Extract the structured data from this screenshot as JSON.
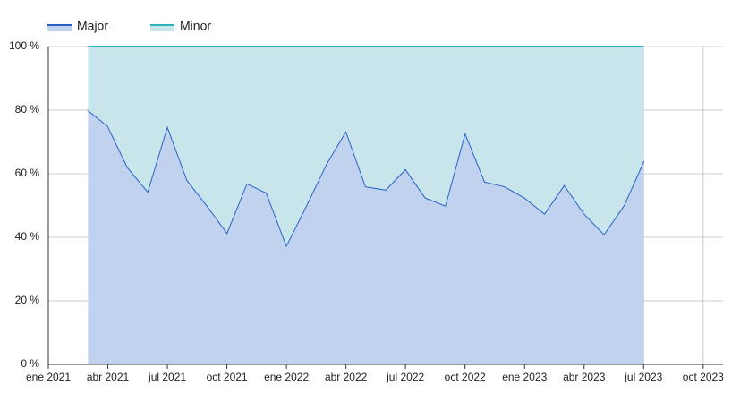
{
  "chart_data": {
    "type": "stacked-area",
    "x": [
      "2021-03",
      "2021-04",
      "2021-05",
      "2021-06",
      "2021-07",
      "2021-08",
      "2021-09",
      "2021-10",
      "2021-11",
      "2021-12",
      "2022-01",
      "2022-02",
      "2022-03",
      "2022-04",
      "2022-05",
      "2022-06",
      "2022-07",
      "2022-08",
      "2022-09",
      "2022-10",
      "2022-11",
      "2022-12",
      "2023-01",
      "2023-02",
      "2023-03",
      "2023-04",
      "2023-05",
      "2023-06",
      "2023-07"
    ],
    "series": [
      {
        "name": "Major",
        "color": "#2862c8",
        "fill": "#c0d2ee",
        "values": [
          80,
          75,
          62,
          54.5,
          75,
          58,
          50,
          41.5,
          57,
          54,
          37.5,
          50,
          63,
          73.5,
          56,
          55,
          61.5,
          52.5,
          50,
          73,
          57.5,
          56,
          52.5,
          47.5,
          56.5,
          47.5,
          41,
          50,
          64
        ]
      },
      {
        "name": "Minor",
        "color": "#2bb3bb",
        "fill": "#c8e5ec",
        "values": [
          20,
          25,
          38,
          45.5,
          25,
          42,
          50,
          58.5,
          43,
          46,
          62.5,
          50,
          37,
          26.5,
          44,
          45,
          38.5,
          47.5,
          50,
          27,
          42.5,
          44,
          47.5,
          52.5,
          43.5,
          52.5,
          59,
          50,
          36
        ]
      }
    ],
    "xlim": [
      "2021-01",
      "2023-11"
    ],
    "xticks": [
      {
        "value": "2021-01",
        "label": "ene 2021"
      },
      {
        "value": "2021-04",
        "label": "abr 2021"
      },
      {
        "value": "2021-07",
        "label": "jul 2021"
      },
      {
        "value": "2021-10",
        "label": "oct 2021"
      },
      {
        "value": "2022-01",
        "label": "ene 2022"
      },
      {
        "value": "2022-04",
        "label": "abr 2022"
      },
      {
        "value": "2022-07",
        "label": "jul 2022"
      },
      {
        "value": "2022-10",
        "label": "oct 2022"
      },
      {
        "value": "2023-01",
        "label": "ene 2023"
      },
      {
        "value": "2023-04",
        "label": "abr 2023"
      },
      {
        "value": "2023-07",
        "label": "jul 2023"
      },
      {
        "value": "2023-10",
        "label": "oct 2023"
      }
    ],
    "ylim": [
      0,
      100
    ],
    "yticks": [
      {
        "value": 0,
        "label": "0 %"
      },
      {
        "value": 20,
        "label": "20 %"
      },
      {
        "value": 40,
        "label": "40 %"
      },
      {
        "value": 60,
        "label": "60 %"
      },
      {
        "value": 80,
        "label": "80 %"
      },
      {
        "value": 100,
        "label": "100 %"
      }
    ],
    "grid": true,
    "legend": "top-left"
  }
}
